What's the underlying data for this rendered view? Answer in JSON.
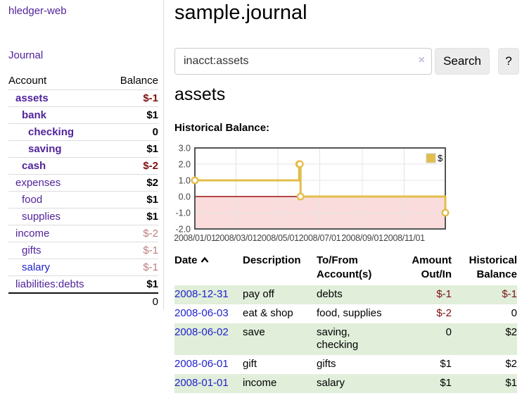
{
  "colors": {
    "link_purple": "#51249b",
    "link_blue": "#2222cc",
    "negative_strong": "#7d1010",
    "negative_faded": "#bd7f7f",
    "row_stripe_green": "#e0eeda",
    "button_bg": "#ececec",
    "sidebar_divider": "#dddddd"
  },
  "sidebar": {
    "app_title": "hledger-web",
    "journal_label": "Journal",
    "accounts_table": {
      "header_account": "Account",
      "header_balance": "Balance",
      "rows": [
        {
          "name": "assets",
          "balance": "$-1",
          "level": 1,
          "bold": true,
          "tone": "negative"
        },
        {
          "name": "bank",
          "balance": "$1",
          "level": 2,
          "bold": true,
          "tone": "normal"
        },
        {
          "name": "checking",
          "balance": "0",
          "level": 3,
          "bold": true,
          "tone": "normal"
        },
        {
          "name": "saving",
          "balance": "$1",
          "level": 3,
          "bold": true,
          "tone": "normal"
        },
        {
          "name": "cash",
          "balance": "$-2",
          "level": 2,
          "bold": true,
          "tone": "negative"
        },
        {
          "name": "expenses",
          "balance": "$2",
          "level": 1,
          "bold": false,
          "tone": "normal"
        },
        {
          "name": "food",
          "balance": "$1",
          "level": 2,
          "bold": false,
          "tone": "normal"
        },
        {
          "name": "supplies",
          "balance": "$1",
          "level": 2,
          "bold": false,
          "tone": "normal"
        },
        {
          "name": "income",
          "balance": "$-2",
          "level": 1,
          "bold": false,
          "tone": "faded"
        },
        {
          "name": "gifts",
          "balance": "$-1",
          "level": 2,
          "bold": false,
          "tone": "faded"
        },
        {
          "name": "salary",
          "balance": "$-1",
          "level": 2,
          "bold": false,
          "tone": "faded",
          "link_style": "blue"
        },
        {
          "name": "liabilities:debts",
          "balance": "$1",
          "level": 1,
          "bold": false,
          "tone": "normal"
        }
      ],
      "total": "0"
    }
  },
  "main": {
    "title": "sample.journal",
    "search": {
      "value": "inacct:assets",
      "clear_icon": "×",
      "button_label": "Search",
      "help_label": "?"
    },
    "account_heading": "assets",
    "chart_label": "Historical Balance:",
    "register": {
      "headers": {
        "date": "Date",
        "description": "Description",
        "accounts": "To/From Account(s)",
        "amount": "Amount Out/In",
        "balance": "Historical Balance"
      },
      "rows": [
        {
          "date": "2008-12-31",
          "description": "pay off",
          "accounts": "debts",
          "amount": "$-1",
          "balance": "$-1"
        },
        {
          "date": "2008-06-03",
          "description": "eat & shop",
          "accounts": "food, supplies",
          "amount": "$-2",
          "balance": "0"
        },
        {
          "date": "2008-06-02",
          "description": "save",
          "accounts": "saving, checking",
          "amount": "0",
          "balance": "$2"
        },
        {
          "date": "2008-06-01",
          "description": "gift",
          "accounts": "gifts",
          "amount": "$1",
          "balance": "$2"
        },
        {
          "date": "2008-01-01",
          "description": "income",
          "accounts": "salary",
          "amount": "$1",
          "balance": "$1"
        }
      ]
    }
  },
  "chart_data": {
    "type": "line",
    "title": "Historical Balance",
    "step": true,
    "series": [
      {
        "name": "$",
        "color": "#e3bd49",
        "point_fill": "#ffffff",
        "x": [
          "2008-01-01",
          "2008-06-01",
          "2008-06-02",
          "2008-06-03",
          "2008-12-31"
        ],
        "values": [
          1,
          2,
          2,
          0,
          -1
        ]
      }
    ],
    "x_range": [
      "2008-01-01",
      "2008-12-31"
    ],
    "x_ticks": [
      "2008/01/01",
      "2008/03/01",
      "2008/05/01",
      "2008/07/01",
      "2008/09/01",
      "2008/11/01"
    ],
    "y_ticks": [
      "3.0",
      "2.0",
      "1.0",
      "0.0",
      "-1.0",
      "-2.0"
    ],
    "ylim": [
      -2,
      3
    ],
    "grid": true,
    "grid_color": "#e4e4e4",
    "border_color": "#545454",
    "zero_line_color": "#991111",
    "negative_region_color": "#fadcdc",
    "legend": {
      "label": "$",
      "position": "top-right"
    }
  }
}
